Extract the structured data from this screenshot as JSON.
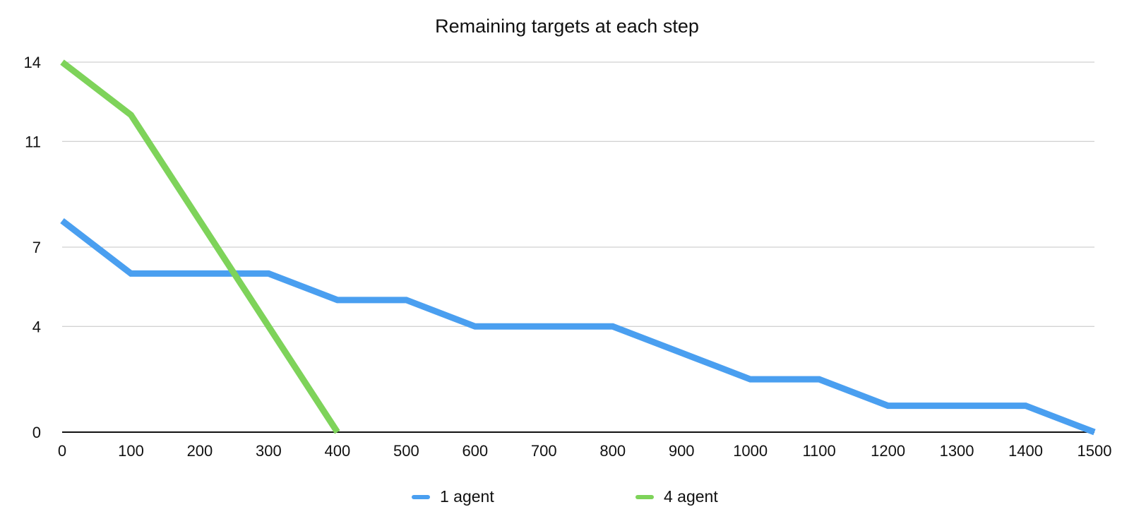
{
  "chart_data": {
    "type": "line",
    "title": "Remaining targets at each step",
    "xlabel": "",
    "ylabel": "",
    "x": [
      0,
      100,
      200,
      300,
      400,
      500,
      600,
      700,
      800,
      900,
      1000,
      1100,
      1200,
      1300,
      1400,
      1500
    ],
    "x_ticks": [
      "0",
      "100",
      "200",
      "300",
      "400",
      "500",
      "600",
      "700",
      "800",
      "900",
      "1000",
      "1100",
      "1200",
      "1300",
      "1400",
      "1500"
    ],
    "y_ticks": [
      "0",
      "4",
      "7",
      "11",
      "14"
    ],
    "ylim": [
      0,
      14
    ],
    "xlim": [
      0,
      1500
    ],
    "grid": true,
    "legend_position": "bottom",
    "series": [
      {
        "name": "1 agent",
        "color": "#4a9ff0",
        "x": [
          0,
          100,
          200,
          300,
          400,
          500,
          600,
          700,
          800,
          900,
          1000,
          1100,
          1200,
          1300,
          1400,
          1500
        ],
        "values": [
          8,
          6,
          6,
          6,
          5,
          5,
          4,
          4,
          4,
          3,
          2,
          2,
          1,
          1,
          1,
          0
        ]
      },
      {
        "name": "4 agent",
        "color": "#7ed35a",
        "x": [
          0,
          100,
          200,
          300,
          400
        ],
        "values": [
          14,
          12,
          8,
          4,
          0
        ]
      }
    ]
  }
}
